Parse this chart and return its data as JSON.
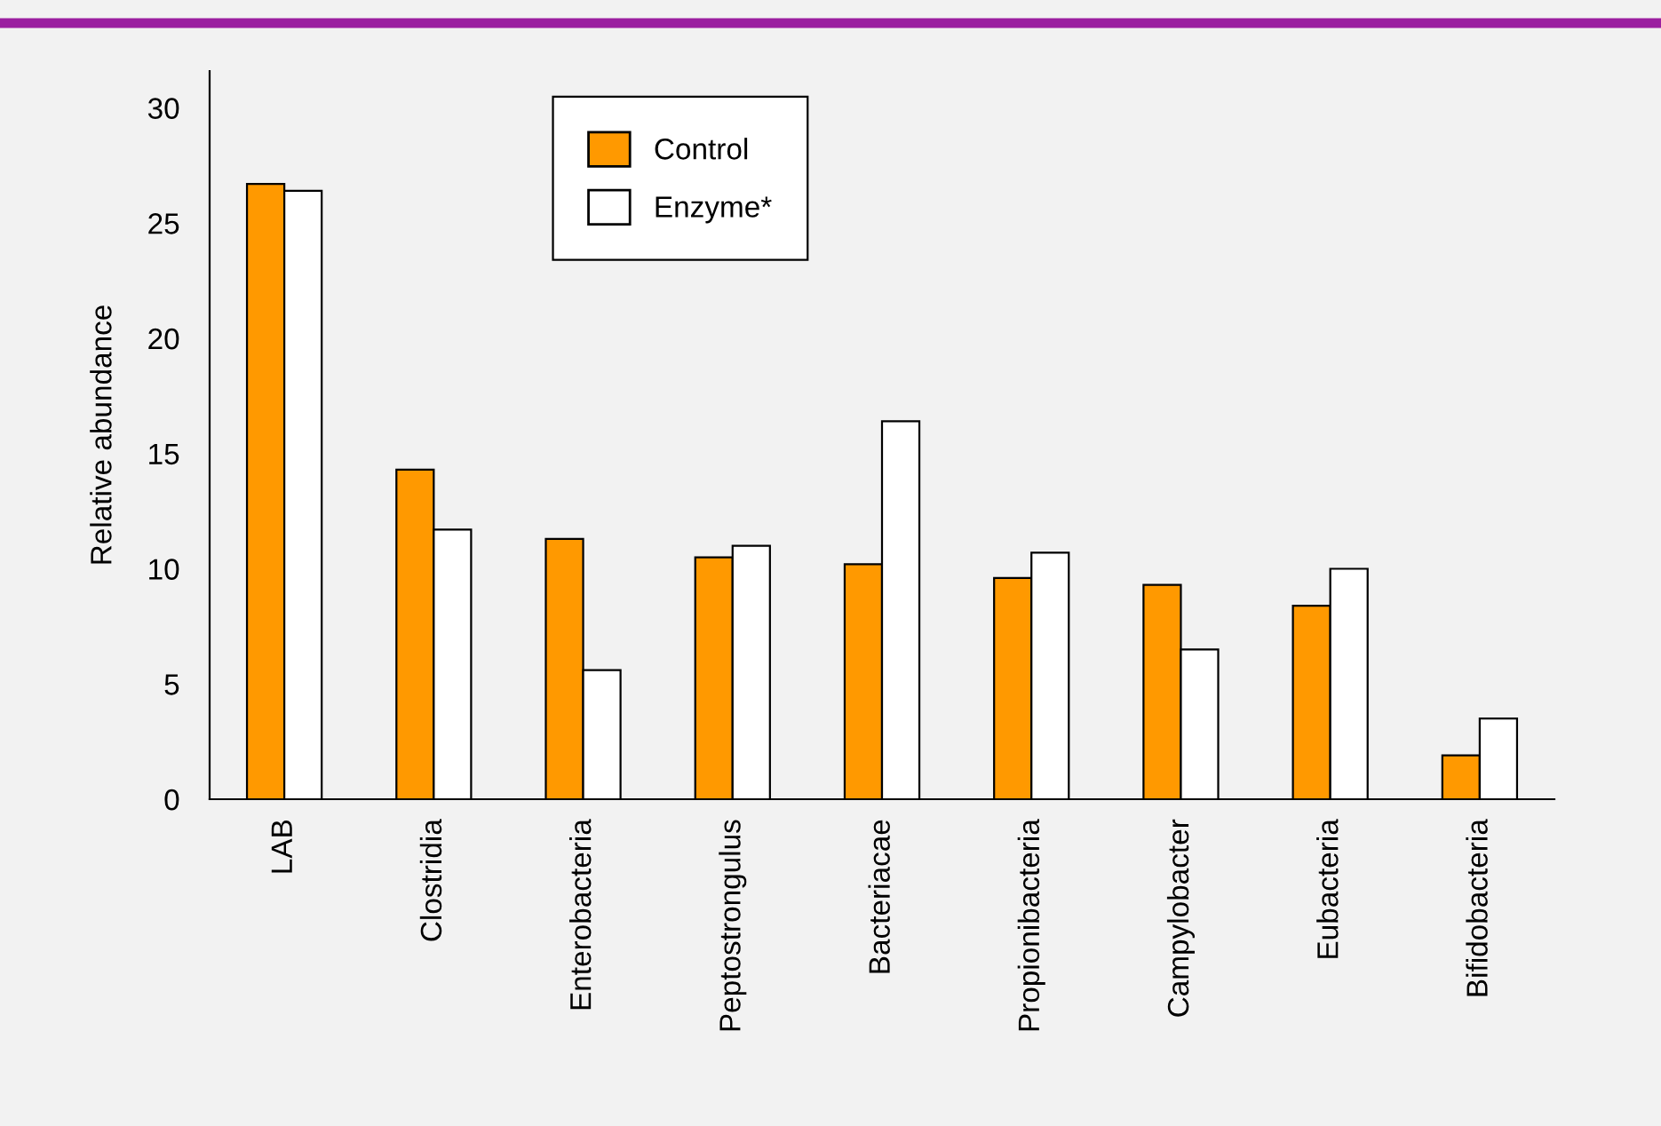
{
  "chart_data": {
    "type": "bar",
    "ylabel": "Relative abundance",
    "categories": [
      "LAB",
      "Clostridia",
      "Enterobacteria",
      "Peptostrongulus",
      "Bacteriacae",
      "Propionibacteria",
      "Campylobacter",
      "Eubacteria",
      "Bifidobacteria"
    ],
    "series": [
      {
        "name": "Control",
        "color": "#ff9900",
        "values": [
          26.7,
          14.3,
          11.3,
          10.5,
          10.2,
          9.6,
          9.3,
          8.4,
          1.9
        ]
      },
      {
        "name": "Enzyme*",
        "color": "#ffffff",
        "values": [
          26.4,
          11.7,
          5.6,
          11.0,
          16.4,
          10.7,
          6.5,
          10.0,
          3.5
        ]
      }
    ],
    "ylim": [
      0,
      31.6
    ],
    "yticks": [
      0,
      5,
      10,
      15,
      20,
      25,
      30
    ],
    "grid": false,
    "legend": "top"
  }
}
